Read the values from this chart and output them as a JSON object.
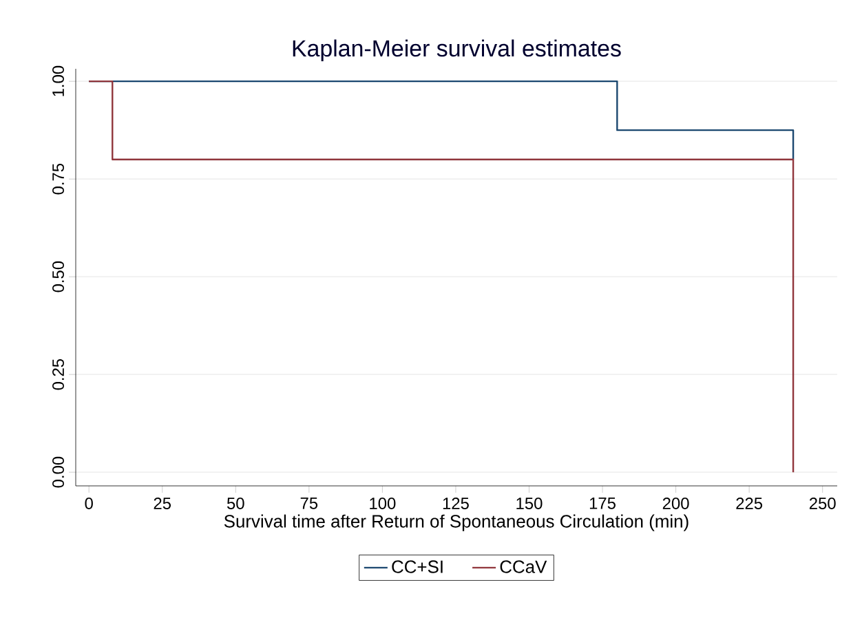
{
  "chart_data": {
    "type": "step",
    "title": "Kaplan-Meier survival estimates",
    "xlabel": "Survival time after Return of Spontaneous Circulation (min)",
    "xlim": [
      -4.5,
      255
    ],
    "xticks": [
      0,
      25,
      50,
      75,
      100,
      125,
      150,
      175,
      200,
      225,
      250
    ],
    "ylim": [
      -0.035,
      1.032
    ],
    "yticks": [
      {
        "value": 0,
        "label": "0.00"
      },
      {
        "value": 0.25,
        "label": "0.25"
      },
      {
        "value": 0.5,
        "label": "0.50"
      },
      {
        "value": 0.75,
        "label": "0.75"
      },
      {
        "value": 1,
        "label": "1.00"
      }
    ],
    "grid": "y",
    "legend": "bottom",
    "series": [
      {
        "name": "CC+SI",
        "color": "#1a476f",
        "x": [
          0,
          180,
          240
        ],
        "values": [
          1,
          0.875,
          0.8
        ]
      },
      {
        "name": "CCaV",
        "color": "#90353b",
        "x": [
          0,
          8,
          240
        ],
        "values": [
          1,
          0.8,
          0
        ]
      }
    ]
  }
}
